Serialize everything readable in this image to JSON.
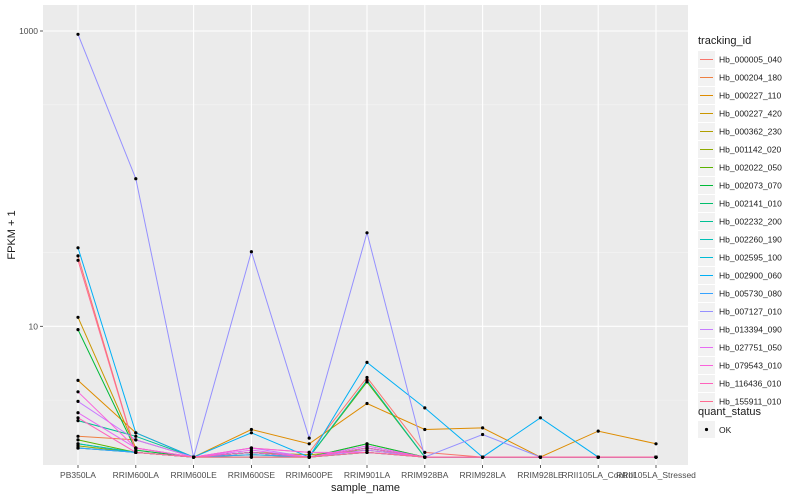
{
  "chart_data": {
    "type": "line",
    "xlabel": "sample_name",
    "ylabel": "FPKM + 1",
    "y_scale": "log10",
    "ylim": [
      1.15,
      1500
    ],
    "y_ticks": [
      {
        "value": 10,
        "label": "10"
      },
      {
        "value": 1000,
        "label": "1000"
      }
    ],
    "grid": true,
    "legend_position": "right",
    "categories": [
      "PB350LA",
      "RRIM600LA",
      "RRIM600LE",
      "RRIM600SE",
      "RRIM600PE",
      "RRIM901LA",
      "RRIM928BA",
      "RRIM928LA",
      "RRIM928LE",
      "RRII105LA_Control",
      "RRII105LA_Stressed"
    ],
    "legend_title": "tracking_id",
    "series": [
      {
        "name": "Hb_000005_040",
        "color": "#F8766D",
        "values": [
          30,
          1.4,
          1.3,
          1.5,
          1.4,
          4.5,
          1.4,
          1.3,
          1.3,
          1.3,
          1.3
        ]
      },
      {
        "name": "Hb_000204_180",
        "color": "#EE8042",
        "values": [
          1.8,
          1.7,
          1.3,
          1.3,
          1.3,
          1.5,
          1.3,
          1.3,
          1.3,
          1.3,
          1.3
        ]
      },
      {
        "name": "Hb_000227_110",
        "color": "#DE8C00",
        "values": [
          4.3,
          1.9,
          1.3,
          2.0,
          1.6,
          3.0,
          2.0,
          2.05,
          1.3,
          1.95,
          1.6
        ]
      },
      {
        "name": "Hb_000227_420",
        "color": "#CA9600",
        "values": [
          11.5,
          1.5,
          1.3,
          1.4,
          1.3,
          1.6,
          1.3,
          1.3,
          1.3,
          1.3,
          1.3
        ]
      },
      {
        "name": "Hb_000362_230",
        "color": "#B09F00",
        "values": [
          1.5,
          1.4,
          1.3,
          1.4,
          1.35,
          1.45,
          1.3,
          1.3,
          1.3,
          1.3,
          1.3
        ]
      },
      {
        "name": "Hb_001142_020",
        "color": "#8FAA00",
        "values": [
          1.55,
          1.4,
          1.3,
          1.4,
          1.3,
          1.4,
          1.3,
          1.3,
          1.3,
          1.3,
          1.3
        ]
      },
      {
        "name": "Hb_002022_050",
        "color": "#5BB300",
        "values": [
          1.7,
          1.4,
          1.3,
          1.35,
          1.3,
          4.2,
          1.3,
          1.3,
          1.3,
          1.3,
          1.3
        ]
      },
      {
        "name": "Hb_002073_070",
        "color": "#00BA38",
        "values": [
          9.5,
          1.45,
          1.3,
          1.4,
          1.3,
          1.6,
          1.3,
          1.3,
          1.3,
          1.3,
          1.3
        ]
      },
      {
        "name": "Hb_002141_010",
        "color": "#00BE6C",
        "values": [
          1.6,
          1.4,
          1.3,
          1.3,
          1.3,
          1.4,
          1.3,
          1.3,
          1.3,
          1.3,
          1.3
        ]
      },
      {
        "name": "Hb_002232_200",
        "color": "#00C094",
        "values": [
          2.3,
          1.8,
          1.3,
          1.4,
          1.3,
          4.3,
          1.3,
          1.3,
          1.3,
          1.3,
          1.3
        ]
      },
      {
        "name": "Hb_002260_190",
        "color": "#00C0B5",
        "values": [
          1.6,
          1.4,
          1.3,
          1.4,
          1.3,
          1.5,
          1.3,
          1.3,
          1.3,
          1.3,
          1.3
        ]
      },
      {
        "name": "Hb_002595_100",
        "color": "#00BCD6",
        "values": [
          1.5,
          1.4,
          1.3,
          1.4,
          1.3,
          1.5,
          1.3,
          1.3,
          1.3,
          1.3,
          1.3
        ]
      },
      {
        "name": "Hb_002900_060",
        "color": "#00B0F6",
        "values": [
          34,
          1.9,
          1.3,
          1.9,
          1.3,
          5.7,
          2.8,
          1.3,
          2.4,
          1.3,
          1.3
        ]
      },
      {
        "name": "Hb_005730_080",
        "color": "#35A2FF",
        "values": [
          1.5,
          1.4,
          1.3,
          1.35,
          1.3,
          1.4,
          1.3,
          1.3,
          1.3,
          1.3,
          1.3
        ]
      },
      {
        "name": "Hb_007127_010",
        "color": "#9590FF",
        "values": [
          950,
          100,
          1.3,
          32,
          1.75,
          43,
          1.3,
          1.85,
          1.3,
          1.3,
          1.3
        ]
      },
      {
        "name": "Hb_013394_090",
        "color": "#C77CFF",
        "values": [
          3.1,
          1.7,
          1.3,
          1.5,
          1.3,
          1.45,
          1.3,
          1.3,
          1.3,
          1.3,
          1.3
        ]
      },
      {
        "name": "Hb_027751_050",
        "color": "#E76BF3",
        "values": [
          2.6,
          1.5,
          1.3,
          1.45,
          1.3,
          1.55,
          1.3,
          1.3,
          1.3,
          1.3,
          1.3
        ]
      },
      {
        "name": "Hb_079543_010",
        "color": "#FA62DB",
        "values": [
          3.6,
          1.5,
          1.3,
          1.5,
          1.4,
          1.4,
          1.3,
          1.3,
          1.3,
          1.3,
          1.3
        ]
      },
      {
        "name": "Hb_116436_010",
        "color": "#FF62BC",
        "values": [
          2.4,
          1.4,
          1.3,
          1.4,
          1.3,
          1.5,
          1.3,
          1.3,
          1.3,
          1.3,
          1.3
        ]
      },
      {
        "name": "Hb_155911_010",
        "color": "#FF6C91",
        "values": [
          28,
          1.4,
          1.3,
          1.3,
          1.3,
          1.4,
          1.3,
          1.3,
          1.3,
          1.3,
          1.3
        ]
      }
    ],
    "point_legend": {
      "title": "quant_status",
      "label": "OK",
      "color": "#000000"
    }
  }
}
